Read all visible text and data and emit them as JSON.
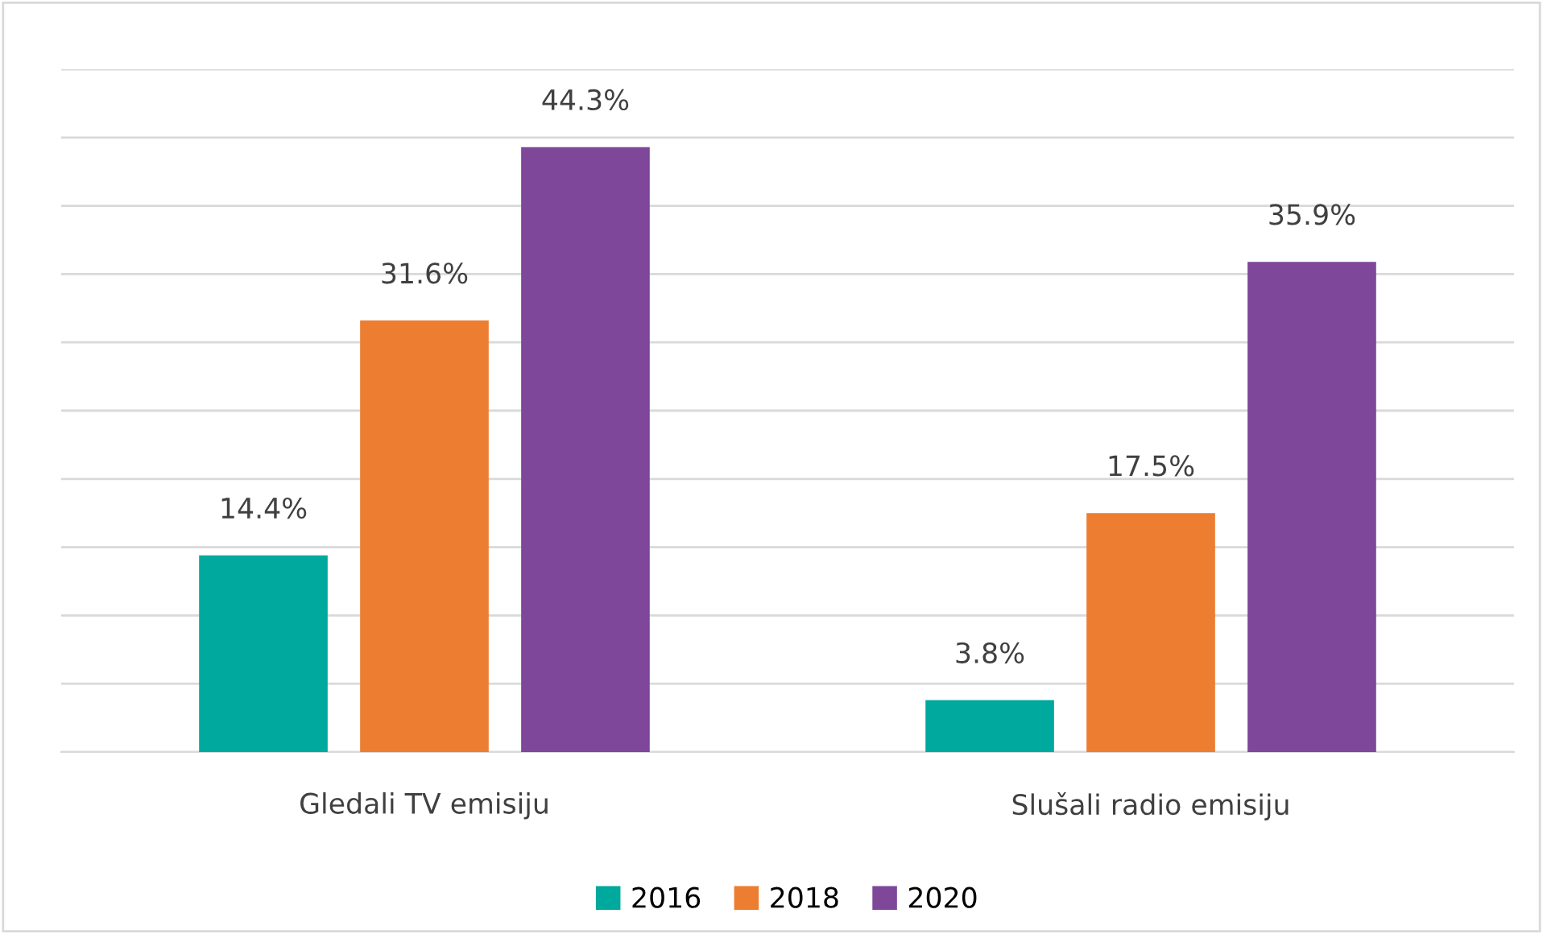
{
  "chart_data": {
    "type": "bar",
    "categories": [
      "Gledali TV emisiju",
      "Slušali radio emisiju"
    ],
    "series": [
      {
        "name": "2016",
        "color": "#00a99d",
        "values": [
          14.4,
          3.8
        ],
        "value_labels": [
          "14.4%",
          "3.8%"
        ]
      },
      {
        "name": "2018",
        "color": "#ed7d31",
        "values": [
          31.6,
          17.5
        ],
        "value_labels": [
          "31.6%",
          "17.5%"
        ]
      },
      {
        "name": "2020",
        "color": "#7e479a",
        "values": [
          44.3,
          35.9
        ],
        "value_labels": [
          "44.3%",
          "35.9%"
        ]
      }
    ],
    "ylim": [
      0,
      50
    ],
    "yticks": [
      {
        "value": 0,
        "label": null
      },
      {
        "value": 5,
        "label": null
      },
      {
        "value": 10,
        "label": null
      },
      {
        "value": 15,
        "label": null
      },
      {
        "value": 20,
        "label": null
      },
      {
        "value": 25,
        "label": null
      },
      {
        "value": 30,
        "label": null
      },
      {
        "value": 35,
        "label": null
      },
      {
        "value": 40,
        "label": null
      },
      {
        "value": 45,
        "label": null
      },
      {
        "value": 50,
        "label": null
      }
    ],
    "grid": "y",
    "legend": "bottom",
    "tick_labels": "x"
  }
}
